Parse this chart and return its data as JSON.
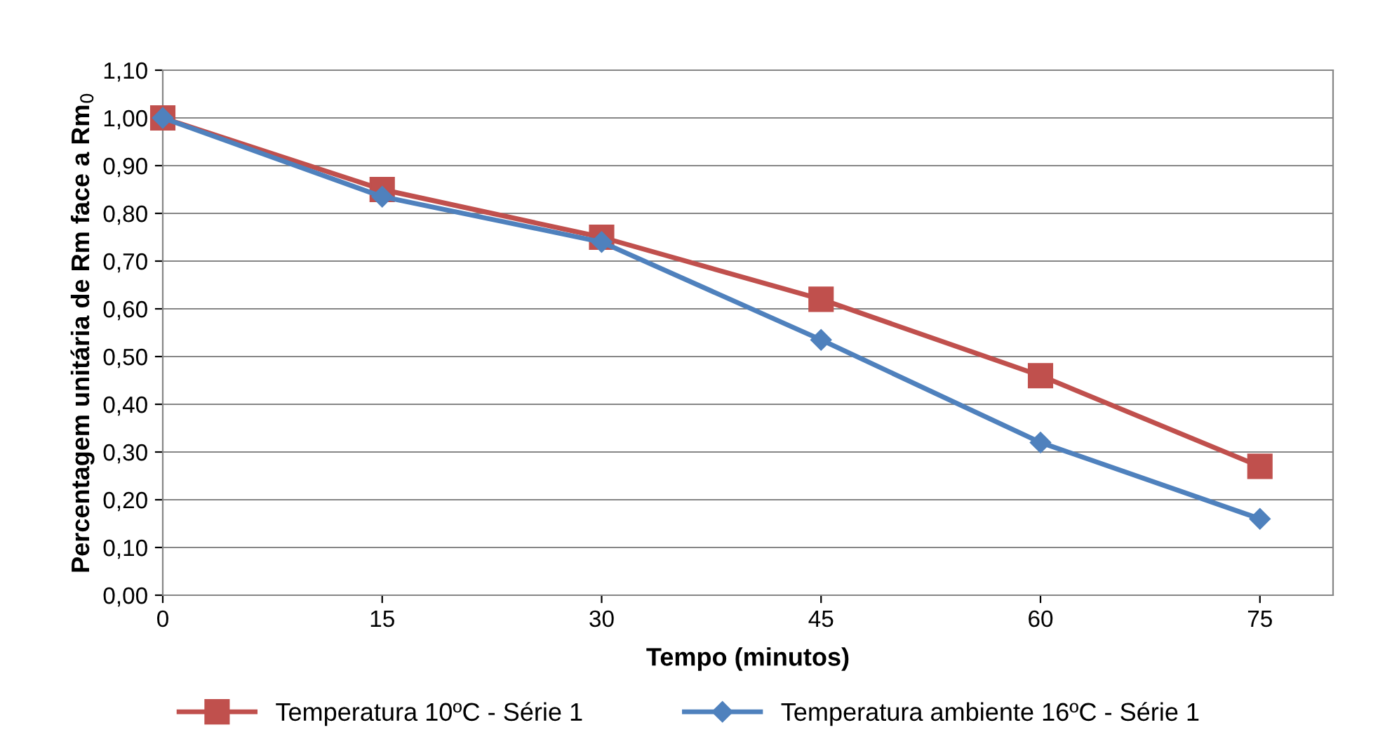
{
  "chart_data": {
    "type": "line",
    "xlabel": "Tempo (minutos)",
    "ylabel": "Percentagem unitária de Rm face a Rm$_{0}$",
    "x": [
      0,
      15,
      30,
      45,
      60,
      75
    ],
    "series": [
      {
        "name": "Temperatura 10ºC - Série 1",
        "color": "#c0504d",
        "marker": "square",
        "values": [
          1.0,
          0.85,
          0.75,
          0.62,
          0.46,
          0.27
        ]
      },
      {
        "name": "Temperatura ambiente 16ºC - Série 1",
        "color": "#4f81bd",
        "marker": "diamond",
        "values": [
          1.0,
          0.835,
          0.74,
          0.535,
          0.32,
          0.16
        ]
      }
    ],
    "xlim": [
      0,
      80
    ],
    "xticks": [
      0,
      15,
      30,
      45,
      60,
      75
    ],
    "ylim": [
      0,
      1.1
    ],
    "yticks": [
      {
        "value": 0,
        "label": "0,00"
      },
      {
        "value": 0.1,
        "label": "0,10"
      },
      {
        "value": 0.2,
        "label": "0,20"
      },
      {
        "value": 0.3,
        "label": "0,30"
      },
      {
        "value": 0.4,
        "label": "0,40"
      },
      {
        "value": 0.5,
        "label": "0,50"
      },
      {
        "value": 0.6,
        "label": "0,60"
      },
      {
        "value": 0.7,
        "label": "0,70"
      },
      {
        "value": 0.8,
        "label": "0,80"
      },
      {
        "value": 0.9,
        "label": "0,90"
      },
      {
        "value": 1.0,
        "label": "1,00"
      },
      {
        "value": 1.1,
        "label": "1,10"
      }
    ],
    "grid": "y",
    "legend": "bottom",
    "line_style": "solid"
  }
}
